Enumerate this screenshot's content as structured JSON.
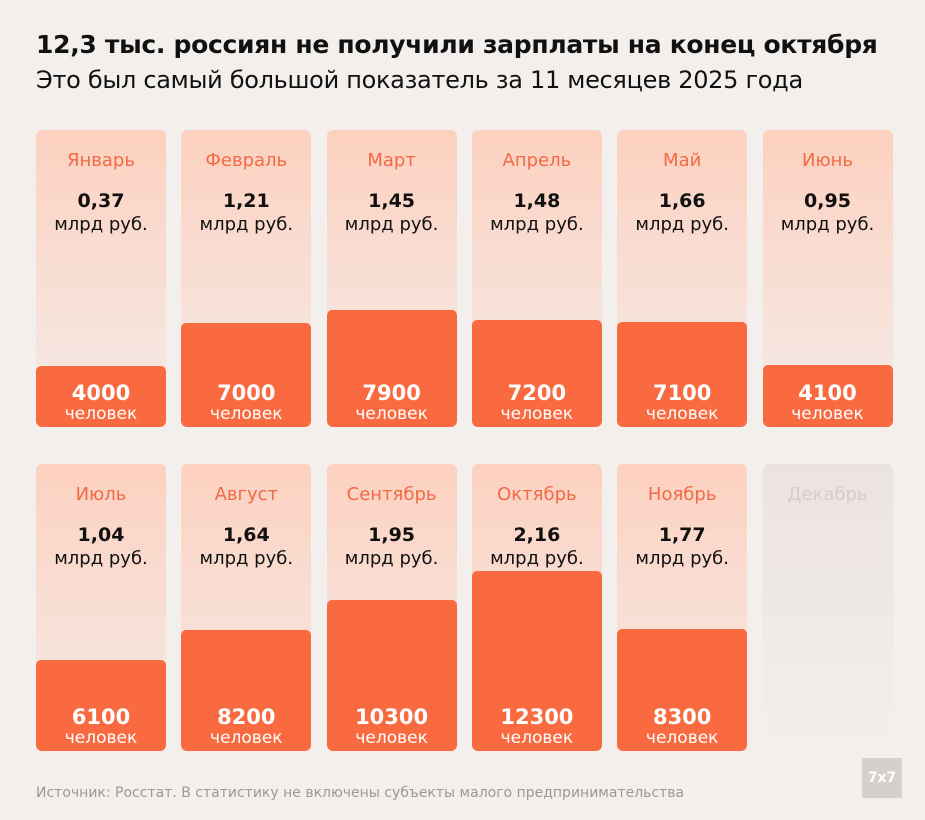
{
  "header": {
    "title": "12,3 тыс. россиян не получили зарплаты на конец октября",
    "subtitle": "Это был самый большой показатель за 11 месяцев 2025 года"
  },
  "chart_data": {
    "type": "bar",
    "title": "12,3 тыс. россиян не получили зарплаты на конец октября",
    "unit_amount": "млрд руб.",
    "unit_people": "человек",
    "categories": [
      "Январь",
      "Февраль",
      "Март",
      "Апрель",
      "Май",
      "Июнь",
      "Июль",
      "Август",
      "Сентябрь",
      "Октябрь",
      "Ноябрь",
      "Декабрь"
    ],
    "amounts": [
      "0,37",
      "1,21",
      "1,45",
      "1,48",
      "1,66",
      "0,95",
      "1,04",
      "1,64",
      "1,95",
      "2,16",
      "1,77",
      null
    ],
    "people": [
      4000,
      7000,
      7900,
      7200,
      7100,
      4100,
      6100,
      8200,
      10300,
      12300,
      8300,
      null
    ]
  },
  "footer": {
    "source": "Источник: Росстат. В статистику не включены субъекты малого предпринимательства",
    "logo": "7x7"
  },
  "colors": {
    "accent": "#f96a41",
    "background": "#f3efec"
  }
}
